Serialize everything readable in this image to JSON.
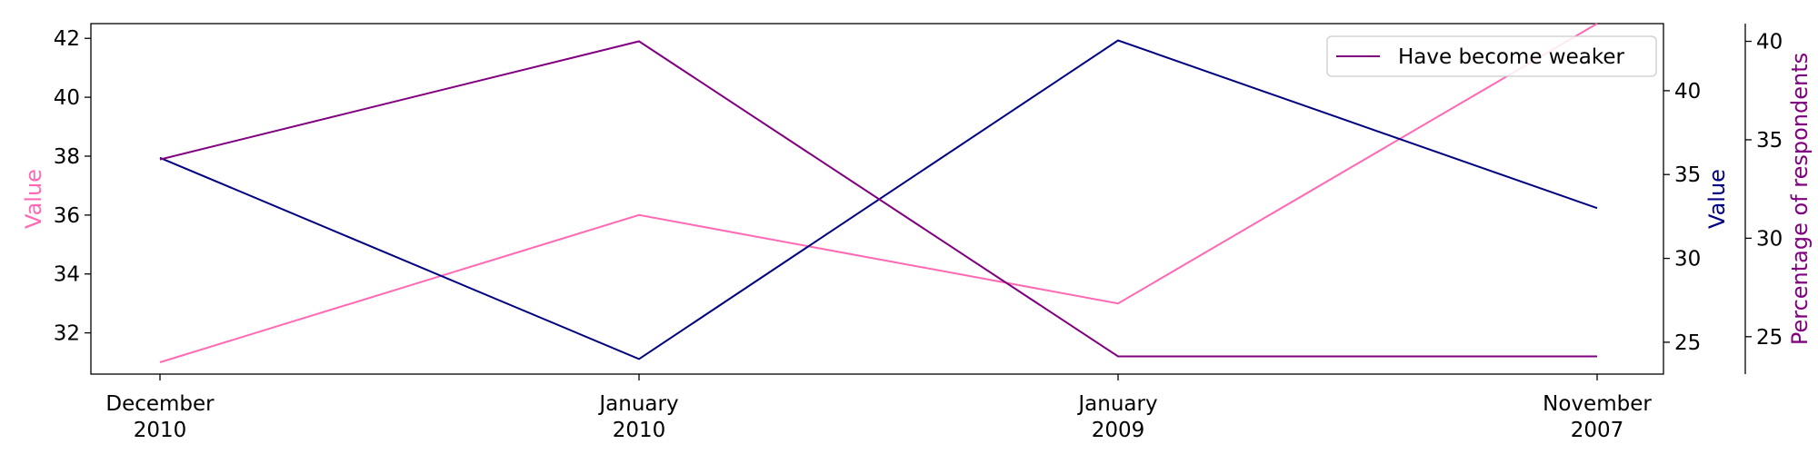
{
  "chart_data": {
    "type": "line",
    "categories": [
      "December\n2010",
      "January\n2010",
      "January\n2009",
      "November\n2007"
    ],
    "axes": {
      "left": {
        "label": "Value",
        "color": "#ff69b4",
        "ticks": [
          32,
          34,
          36,
          38,
          40,
          42
        ],
        "range": [
          30.6,
          42.5
        ]
      },
      "right": {
        "label": "Value",
        "color": "#000080",
        "ticks": [
          25,
          30,
          35,
          40
        ],
        "range": [
          23.1,
          44.0
        ]
      },
      "right_outer": {
        "label": "Percentage of respondents",
        "color": "#800080",
        "ticks": [
          25,
          30,
          35,
          40
        ],
        "range": [
          23.1,
          40.9
        ]
      }
    },
    "series": [
      {
        "axis": "left",
        "color": "#ff69b4",
        "values": [
          31,
          36,
          33,
          42.5
        ]
      },
      {
        "axis": "right",
        "color": "#000080",
        "values": [
          36,
          24,
          43,
          33
        ]
      },
      {
        "name": "Have become weaker",
        "axis": "right_outer",
        "color": "#800080",
        "values": [
          34,
          40,
          24,
          24
        ]
      }
    ],
    "legend": {
      "position": "top-right"
    },
    "grid": false
  }
}
